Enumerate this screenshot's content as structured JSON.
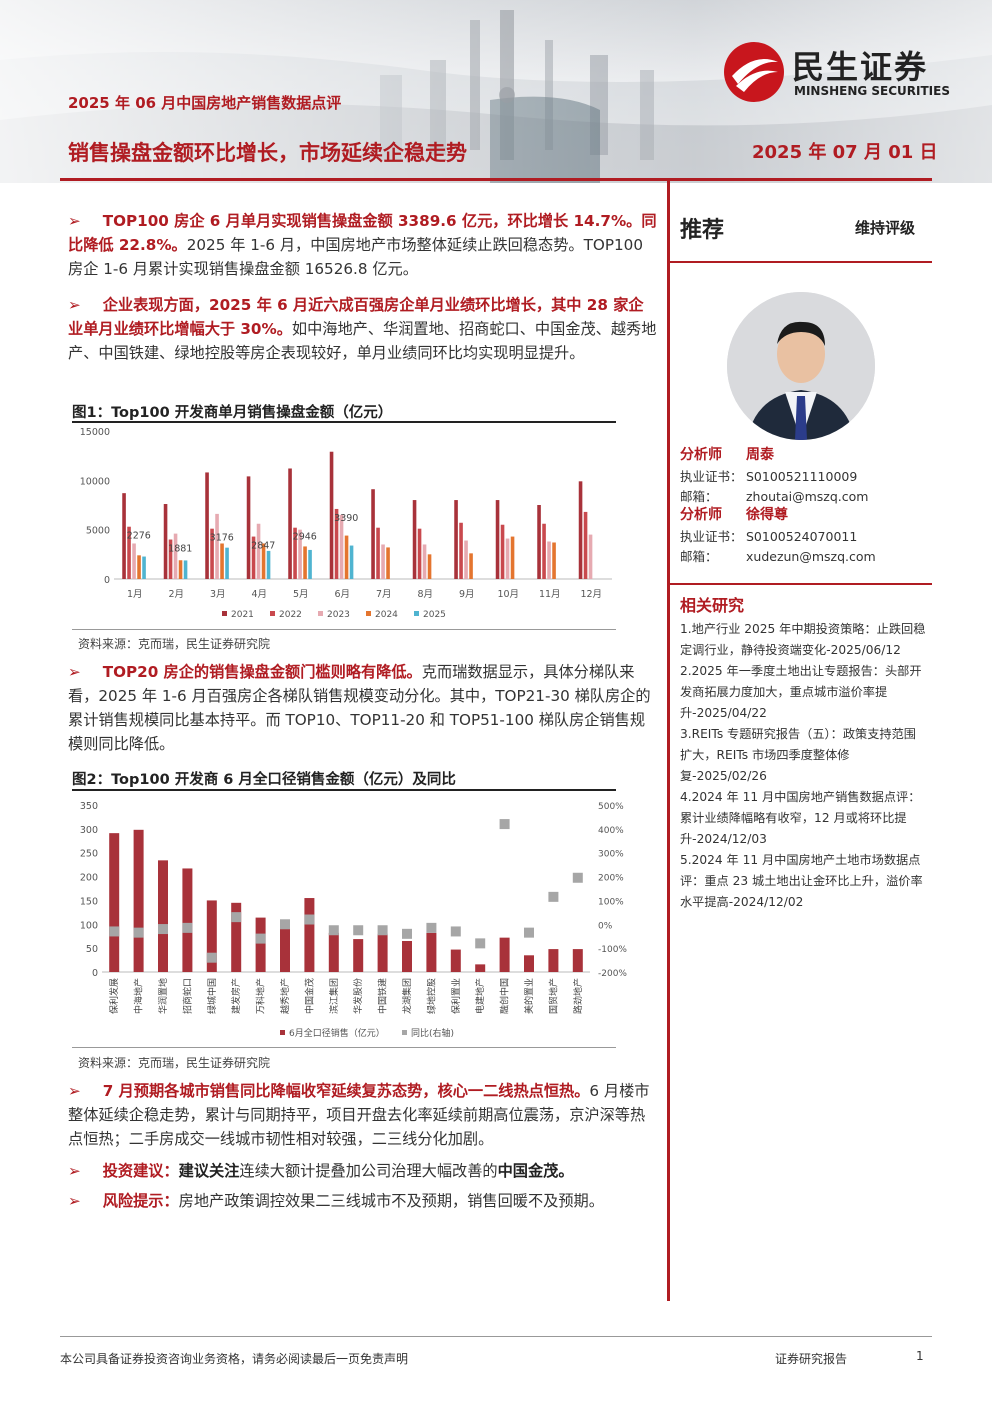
{
  "header": {
    "sub_title": "2025 年 06 月中国房地产销售数据点评",
    "main_title": "销售操盘金额环比增长，市场延续企稳走势",
    "date": "2025 年 07 月 01 日",
    "logo_cn": "民生证券",
    "logo_en": "MINSHENG SECURITIES"
  },
  "body": {
    "p1": {
      "arrow": "➢",
      "red": "TOP100 房企 6 月单月实现销售操盘金额 3389.6 亿元，环比增长 14.7%。同比降低 22.8%。",
      "rest": "2025 年 1-6 月，中国房地产市场整体延续止跌回稳态势。TOP100 房企 1-6 月累计实现销售操盘金额 16526.8 亿元。"
    },
    "p2": {
      "arrow": "➢",
      "red": "企业表现方面，2025 年 6 月近六成百强房企单月业绩环比增长，其中 28 家企业单月业绩环比增幅大于 30%。",
      "rest": "如中海地产、华润置地、招商蛇口、中国金茂、越秀地产、中国铁建、绿地控股等房企表现较好，单月业绩同环比均实现明显提升。"
    },
    "p3": {
      "arrow": "➢",
      "red": "TOP20 房企的销售操盘金额门槛则略有降低。",
      "rest": "克而瑞数据显示，具体分梯队来看，2025 年 1-6 月百强房企各梯队销售规模变动分化。其中，TOP21-30 梯队房企的累计销售规模同比基本持平。而 TOP10、TOP11-20 和 TOP51-100 梯队房企销售规模则同比降低。"
    },
    "p4": {
      "arrow": "➢",
      "red": "7 月预期各城市销售同比降幅收窄延续复苏态势，核心一二线热点恒热。",
      "rest": "6 月楼市整体延续企稳走势，累计与同期持平，项目开盘去化率延续前期高位震荡，京沪深等热点恒热；二手房成交一线城市韧性相对较强，二三线分化加剧。"
    },
    "p5": {
      "arrow": "➢",
      "red": "投资建议：",
      "bold1": "建议关注",
      "rest": "连续大额计提叠加公司治理大幅改善的",
      "bold2": "中国金茂。"
    },
    "p6": {
      "arrow": "➢",
      "red": "风险提示：",
      "rest": "房地产政策调控效果二三线城市不及预期，销售回暖不及预期。"
    }
  },
  "figure1": {
    "title": "图1：Top100 开发商单月销售操盘金额（亿元）",
    "source": "资料来源：克而瑞，民生证券研究院"
  },
  "figure2": {
    "title": "图2：Top100 开发商 6 月全口径销售金额（亿元）及同比",
    "source": "资料来源：克而瑞，民生证券研究院"
  },
  "sidebar": {
    "rec": "推荐",
    "rating": "维持评级",
    "analysts": [
      {
        "role": "分析师",
        "name": "周泰",
        "cert_label": "执业证书：",
        "cert": "S0100521110009",
        "mail_label": "邮箱：",
        "mail": "zhoutai@mszq.com"
      },
      {
        "role": "分析师",
        "name": "徐得尊",
        "cert_label": "执业证书：",
        "cert": "S0100524070011",
        "mail_label": "邮箱：",
        "mail": "xudezun@mszq.com"
      }
    ],
    "related_title": "相关研究",
    "related": [
      "1.地产行业 2025 年中期投资策略：止跌回稳定调行业，静待投资端变化-2025/06/12",
      "2.2025 年一季度土地出让专题报告：头部开发商拓展力度加大，重点城市溢价率提升-2025/04/22",
      "3.REITs 专题研究报告（五）：政策支持范围扩大，REITs 市场四季度整体修复-2025/02/26",
      "4.2024 年 11 月中国房地产销售数据点评：累计业绩降幅略有收窄，12 月或将环比提升-2024/12/03",
      "5.2024 年 11 月中国房地产土地市场数据点评：重点 23 城土地出让金环比上升，溢价率水平提高-2024/12/02"
    ]
  },
  "footer": {
    "left": "本公司具备证券投资咨询业务资格，请务必阅读最后一页免责声明",
    "mid": "证券研究报告",
    "page": "1"
  },
  "chart_data": [
    {
      "type": "bar",
      "title": "图1：Top100 开发商单月销售操盘金额（亿元）",
      "categories": [
        "1月",
        "2月",
        "3月",
        "4月",
        "5月",
        "6月",
        "7月",
        "8月",
        "9月",
        "10月",
        "11月",
        "12月"
      ],
      "ylim": [
        0,
        15000
      ],
      "yticks": [
        0,
        5000,
        10000,
        15000
      ],
      "series": [
        {
          "name": "2021",
          "color": "#a8323a",
          "values": [
            8700,
            7600,
            10800,
            10400,
            11200,
            12900,
            9100,
            8000,
            8000,
            8000,
            7500,
            9900
          ]
        },
        {
          "name": "2022",
          "color": "#c9494e",
          "values": [
            5300,
            4000,
            5100,
            4300,
            5200,
            7100,
            5200,
            5100,
            5700,
            5500,
            5600,
            6800
          ]
        },
        {
          "name": "2023",
          "color": "#e6aab1",
          "values": [
            3600,
            4600,
            6600,
            5600,
            5000,
            6500,
            3500,
            3500,
            3900,
            4100,
            3800,
            4500
          ]
        },
        {
          "name": "2024",
          "color": "#e4752f",
          "values": [
            2400,
            1900,
            3600,
            3600,
            3300,
            4400,
            3200,
            2500,
            2600,
            4300,
            3700,
            null
          ]
        },
        {
          "name": "2025",
          "color": "#4fb4d0",
          "values": [
            2276,
            1881,
            3176,
            2847,
            2946,
            3390,
            null,
            null,
            null,
            null,
            null,
            null
          ]
        }
      ],
      "data_labels": [
        2276,
        1881,
        3176,
        2847,
        2946,
        3390
      ]
    },
    {
      "type": "bar",
      "title": "图2：Top100 开发商 6 月全口径销售金额（亿元）及同比",
      "categories": [
        "保利发展",
        "中海地产",
        "华润置地",
        "招商蛇口",
        "绿城中国",
        "建发房产",
        "万科地产",
        "越秀地产",
        "中国金茂",
        "滨江集团",
        "华发股份",
        "中国铁建",
        "龙湖集团",
        "绿地控股",
        "保利置业",
        "电建地产",
        "融创中国",
        "美的置业",
        "国贸地产",
        "路劲地产"
      ],
      "ylim": [
        0,
        350
      ],
      "yticks": [
        0,
        50,
        100,
        150,
        200,
        250,
        300,
        350
      ],
      "y2lim": [
        -200,
        500
      ],
      "y2ticks": [
        "-200%",
        "-100%",
        "0%",
        "100%",
        "200%",
        "300%",
        "400%",
        "500%"
      ],
      "series": [
        {
          "name": "6月全口径销售（亿元）",
          "color": "#a8323a",
          "values": [
            291,
            298,
            234,
            217,
            150,
            145,
            114,
            96,
            155,
            82,
            69,
            80,
            65,
            82,
            47,
            16,
            72,
            35,
            48,
            48
          ]
        },
        {
          "name": "同比(右轴)",
          "color": "#a6a6a6",
          "axis": "right",
          "values": [
            -30,
            -35,
            -20,
            -15,
            -140,
            30,
            -60,
            0,
            20,
            -25,
            -25,
            -25,
            -40,
            -15,
            -30,
            -80,
            420,
            -35,
            115,
            195
          ]
        }
      ]
    }
  ]
}
